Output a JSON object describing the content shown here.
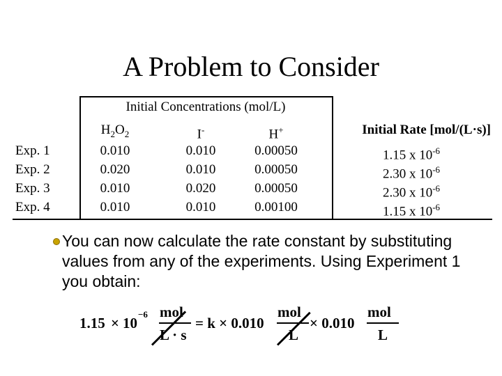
{
  "title": "A Problem to Consider",
  "table": {
    "group_header": "Initial Concentrations (mol/L)",
    "col_h2o2": {
      "main": "H",
      "sub1": "2",
      "mid": "O",
      "sub2": "2"
    },
    "col_i": {
      "main": "I",
      "sup": "-"
    },
    "col_h": {
      "main": "H",
      "sup": "+"
    },
    "col_rate": {
      "a": "Initial Rate [mol/(L",
      "dot": "·",
      "b": "s)]"
    },
    "rows": [
      {
        "label": "Exp. 1",
        "h2o2": "0.010",
        "i": "0.010",
        "h": "0.00050",
        "rate": "1.15 x 10",
        "exp": "-6"
      },
      {
        "label": "Exp. 2",
        "h2o2": "0.020",
        "i": "0.010",
        "h": "0.00050",
        "rate": "2.30 x 10",
        "exp": "-6"
      },
      {
        "label": "Exp. 3",
        "h2o2": "0.010",
        "i": "0.020",
        "h": "0.00050",
        "rate": "2.30 x 10",
        "exp": "-6"
      },
      {
        "label": "Exp. 4",
        "h2o2": "0.010",
        "i": "0.010",
        "h": "0.00100",
        "rate": "1.15 x 10",
        "exp": "-6"
      }
    ]
  },
  "bullet": {
    "icon": "bullet-icon",
    "text": "You can now calculate the rate constant by substituting values from any of the experiments. Using Experiment 1 you obtain:"
  },
  "equation": {
    "coef": "1.15",
    "times1": "×",
    "ten": "10",
    "exp": "−6",
    "f1_num": "mol",
    "f1_den": "L · s",
    "equals": "= k × 0.010",
    "f2_num": "mol",
    "f2_den": "L",
    "times2": "× 0.010",
    "f3_num": "mol",
    "f3_den": "L"
  }
}
